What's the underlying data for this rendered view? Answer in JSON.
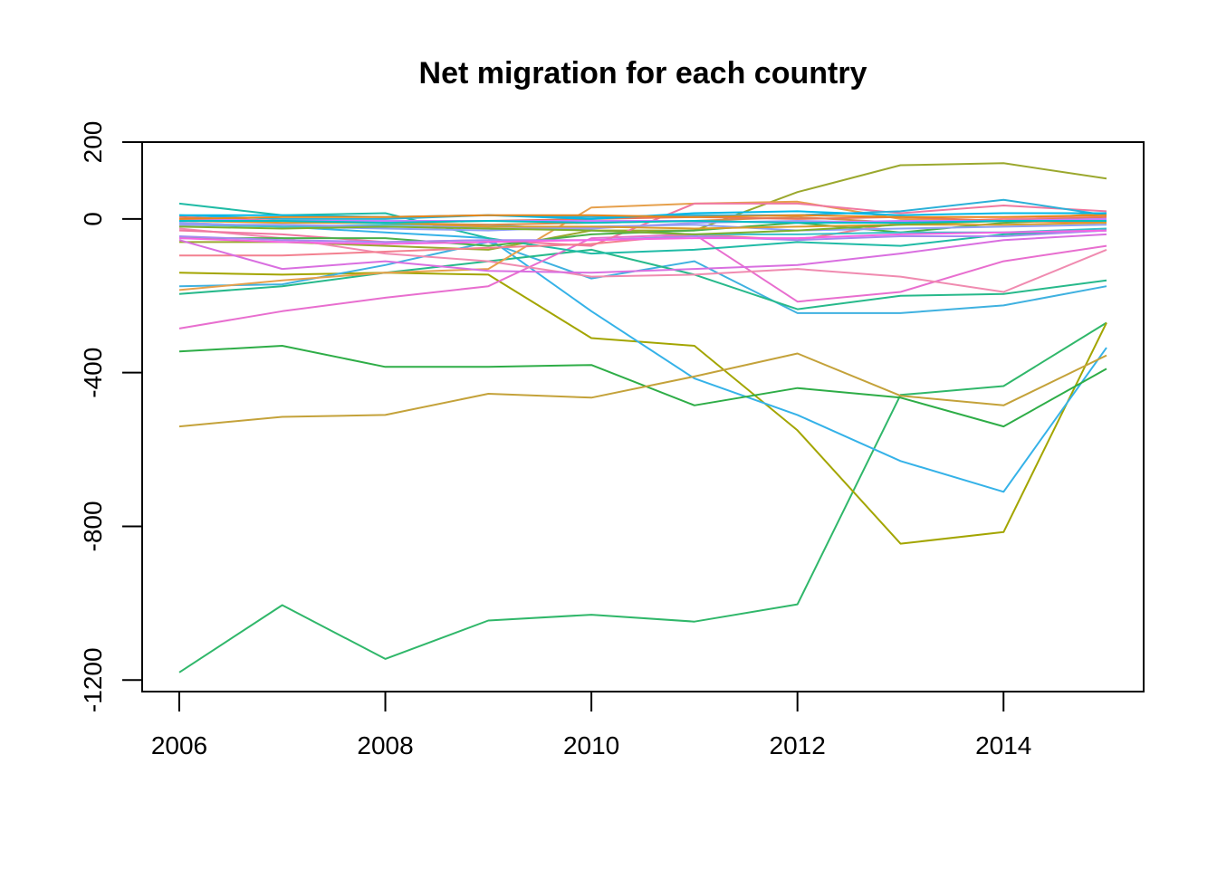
{
  "chart_data": {
    "type": "line",
    "title": "Net migration for each country",
    "xlabel": "",
    "ylabel": "",
    "xlim": [
      2005.64,
      2015.36
    ],
    "ylim": [
      -1230,
      200
    ],
    "x_ticks": [
      2006,
      2008,
      2010,
      2012,
      2014
    ],
    "y_ticks": [
      200,
      0,
      -400,
      -800,
      -1200
    ],
    "x_tick_labels": [
      "2006",
      "2008",
      "2010",
      "2012",
      "2014"
    ],
    "y_tick_labels": [
      "200",
      "0",
      "-400",
      "-800",
      "-1200"
    ],
    "grid": false,
    "legend": "none",
    "x": [
      2006,
      2007,
      2008,
      2009,
      2010,
      2011,
      2012,
      2013,
      2014,
      2015
    ],
    "series": [
      {
        "color": "#30B76A",
        "values": [
          -1180,
          -1005,
          -1145,
          -1045,
          -1030,
          -1048,
          -1003,
          -458,
          -435,
          -270
        ]
      },
      {
        "color": "#A3A500",
        "values": [
          -140,
          -145,
          -140,
          -145,
          -310,
          -330,
          -550,
          -845,
          -815,
          -270
        ]
      },
      {
        "color": "#35B2E8",
        "values": [
          -10,
          -20,
          -35,
          -50,
          -240,
          -415,
          -510,
          -630,
          -710,
          -335
        ]
      },
      {
        "color": "#2EAD47",
        "values": [
          -345,
          -330,
          -385,
          -385,
          -380,
          -485,
          -440,
          -465,
          -540,
          -390
        ]
      },
      {
        "color": "#C4A23A",
        "values": [
          -540,
          -515,
          -510,
          -455,
          -465,
          -410,
          -350,
          -460,
          -485,
          -355
        ]
      },
      {
        "color": "#9BA82E",
        "values": [
          -60,
          -60,
          -70,
          -80,
          -30,
          -30,
          70,
          140,
          145,
          105
        ]
      },
      {
        "color": "#3FB1E0",
        "values": [
          -175,
          -170,
          -120,
          -60,
          -155,
          -110,
          -245,
          -245,
          -225,
          -175
        ]
      },
      {
        "color": "#27B98B",
        "values": [
          -195,
          -175,
          -140,
          -110,
          -80,
          -145,
          -235,
          -200,
          -195,
          -160
        ]
      },
      {
        "color": "#E86ECF",
        "values": [
          -285,
          -240,
          -205,
          -175,
          -50,
          -40,
          -215,
          -190,
          -110,
          -70
        ]
      },
      {
        "color": "#F08BB0",
        "values": [
          -25,
          -50,
          -90,
          -110,
          -150,
          -145,
          -130,
          -150,
          -190,
          -80
        ]
      },
      {
        "color": "#E6A04C",
        "values": [
          -185,
          -160,
          -140,
          -130,
          30,
          40,
          45,
          0,
          -5,
          15
        ]
      },
      {
        "color": "#F078A0",
        "values": [
          -30,
          -40,
          -60,
          -55,
          -70,
          40,
          40,
          15,
          35,
          20
        ]
      },
      {
        "color": "#20BBA6",
        "values": [
          40,
          10,
          15,
          -50,
          -90,
          -80,
          -60,
          -70,
          -40,
          -30
        ]
      },
      {
        "color": "#4AB04A",
        "values": [
          -50,
          -50,
          -50,
          -70,
          -40,
          -30,
          -10,
          -35,
          -10,
          0
        ]
      },
      {
        "color": "#2CB0D8",
        "values": [
          10,
          0,
          0,
          10,
          5,
          10,
          10,
          20,
          50,
          10
        ]
      },
      {
        "color": "#F38090",
        "values": [
          -95,
          -95,
          -85,
          -75,
          -65,
          -40,
          -55,
          -10,
          0,
          5
        ]
      },
      {
        "color": "#D96FE0",
        "values": [
          -55,
          -130,
          -110,
          -135,
          -140,
          -130,
          -120,
          -90,
          -55,
          -40
        ]
      },
      {
        "color": "#A58AF0",
        "values": [
          -45,
          -55,
          -60,
          -55,
          -55,
          -45,
          -55,
          -45,
          -45,
          -30
        ]
      },
      {
        "color": "#8FA0F5",
        "values": [
          -10,
          -20,
          -25,
          -30,
          -20,
          -15,
          -30,
          -25,
          -20,
          -15
        ]
      },
      {
        "color": "#38C0C8",
        "values": [
          -15,
          -20,
          -15,
          -15,
          -30,
          -40,
          -40,
          -35,
          -35,
          -25
        ]
      },
      {
        "color": "#D98A4A",
        "values": [
          0,
          -5,
          -10,
          -15,
          -10,
          -5,
          5,
          -10,
          -5,
          -10
        ]
      },
      {
        "color": "#E8755A",
        "values": [
          5,
          -5,
          -10,
          -5,
          0,
          5,
          0,
          5,
          -5,
          5
        ]
      },
      {
        "color": "#9C9AF3",
        "values": [
          -15,
          -15,
          -20,
          -20,
          -25,
          -10,
          -5,
          -10,
          -5,
          0
        ]
      },
      {
        "color": "#D99B2C",
        "values": [
          -5,
          -10,
          -10,
          -20,
          -20,
          -25,
          -20,
          -15,
          -15,
          -10
        ]
      },
      {
        "color": "#7FAE2E",
        "values": [
          -20,
          -25,
          -20,
          -25,
          -30,
          -40,
          -30,
          -15,
          -5,
          -5
        ]
      },
      {
        "color": "#C77CFF",
        "values": [
          0,
          -5,
          -5,
          -5,
          -5,
          -5,
          -10,
          -5,
          -5,
          0
        ]
      },
      {
        "color": "#F564E3",
        "values": [
          -50,
          -60,
          -65,
          -60,
          -55,
          -50,
          -50,
          -40,
          -35,
          -30
        ]
      },
      {
        "color": "#00B8E7",
        "values": [
          10,
          10,
          5,
          10,
          0,
          15,
          20,
          10,
          15,
          15
        ]
      },
      {
        "color": "#E7861B",
        "values": [
          0,
          5,
          5,
          10,
          10,
          5,
          10,
          5,
          5,
          10
        ]
      },
      {
        "color": "#00BFC4",
        "values": [
          -5,
          -5,
          -10,
          -5,
          -10,
          -5,
          -10,
          -10,
          -5,
          -5
        ]
      }
    ]
  }
}
